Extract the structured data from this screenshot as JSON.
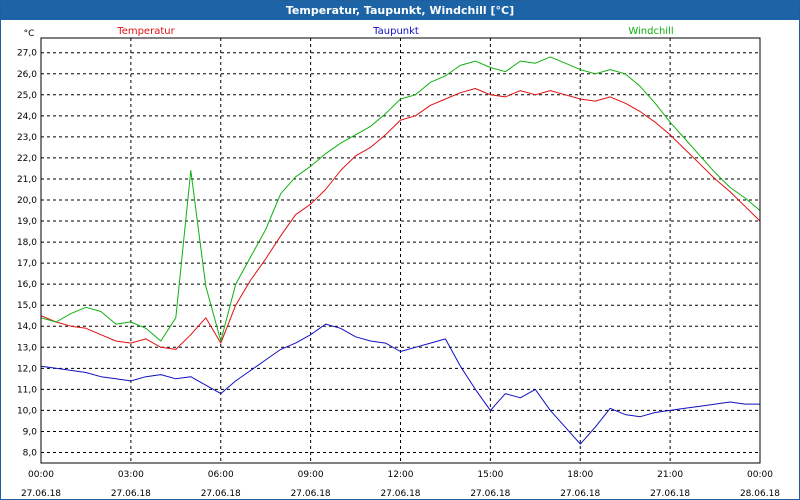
{
  "window": {
    "title": "Temperatur, Taupunkt, Windchill [°C]"
  },
  "chart_data": {
    "type": "line",
    "title": "Temperatur, Taupunkt, Windchill [°C]",
    "ylabel": "°C",
    "ylim": [
      7.5,
      27.7
    ],
    "yticks": [
      "8,0",
      "9,0",
      "10,0",
      "11,0",
      "12,0",
      "13,0",
      "14,0",
      "15,0",
      "16,0",
      "17,0",
      "18,0",
      "19,0",
      "20,0",
      "21,0",
      "22,0",
      "23,0",
      "24,0",
      "25,0",
      "26,0",
      "27,0"
    ],
    "xlim": [
      0,
      24
    ],
    "xticks": [
      {
        "time": "00:00",
        "date": "27.06.18"
      },
      {
        "time": "03:00",
        "date": "27.06.18"
      },
      {
        "time": "06:00",
        "date": "27.06.18"
      },
      {
        "time": "09:00",
        "date": "27.06.18"
      },
      {
        "time": "12:00",
        "date": "27.06.18"
      },
      {
        "time": "15:00",
        "date": "27.06.18"
      },
      {
        "time": "18:00",
        "date": "27.06.18"
      },
      {
        "time": "21:00",
        "date": "27.06.18"
      },
      {
        "time": "00:00",
        "date": "28.06.18"
      }
    ],
    "grid": true,
    "legend_placement": "top",
    "series": [
      {
        "name": "Temperatur",
        "color": "#e01010",
        "x": [
          0,
          0.5,
          1,
          1.5,
          2,
          2.5,
          3,
          3.5,
          4,
          4.5,
          5,
          5.5,
          6,
          6.5,
          7,
          7.5,
          8,
          8.5,
          9,
          9.5,
          10,
          10.5,
          11,
          11.5,
          12,
          12.5,
          13,
          13.5,
          14,
          14.5,
          15,
          15.5,
          16,
          16.5,
          17,
          17.5,
          18,
          18.5,
          19,
          19.5,
          20,
          20.5,
          21,
          21.5,
          22,
          22.5,
          23,
          23.5,
          24
        ],
        "values": [
          14.5,
          14.2,
          14.0,
          13.9,
          13.6,
          13.3,
          13.2,
          13.4,
          13.0,
          12.9,
          13.6,
          14.4,
          13.2,
          15.0,
          16.2,
          17.2,
          18.3,
          19.3,
          19.8,
          20.5,
          21.4,
          22.1,
          22.5,
          23.1,
          23.8,
          24.0,
          24.5,
          24.8,
          25.1,
          25.3,
          25.0,
          24.9,
          25.2,
          25.0,
          25.2,
          25.0,
          24.8,
          24.7,
          24.9,
          24.6,
          24.2,
          23.7,
          23.1,
          22.4,
          21.7,
          21.0,
          20.4,
          19.7,
          19.0
        ]
      },
      {
        "name": "Taupunkt",
        "color": "#1010c0",
        "x": [
          0,
          0.5,
          1,
          1.5,
          2,
          2.5,
          3,
          3.5,
          4,
          4.5,
          5,
          5.5,
          6,
          6.5,
          7,
          7.5,
          8,
          8.5,
          9,
          9.5,
          10,
          10.5,
          11,
          11.5,
          12,
          12.5,
          13,
          13.5,
          14,
          14.5,
          15,
          15.5,
          16,
          16.5,
          17,
          17.5,
          18,
          18.5,
          19,
          19.5,
          20,
          20.5,
          21,
          21.5,
          22,
          22.5,
          23,
          23.5,
          24
        ],
        "values": [
          12.1,
          12.0,
          11.9,
          11.8,
          11.6,
          11.5,
          11.4,
          11.6,
          11.7,
          11.5,
          11.6,
          11.2,
          10.8,
          11.4,
          11.9,
          12.4,
          12.9,
          13.2,
          13.6,
          14.1,
          13.9,
          13.5,
          13.3,
          13.2,
          12.8,
          13.0,
          13.2,
          13.4,
          12.1,
          11.0,
          10.0,
          10.8,
          10.6,
          11.0,
          10.0,
          9.2,
          8.4,
          9.2,
          10.1,
          9.8,
          9.7,
          9.9,
          10.0,
          10.1,
          10.2,
          10.3,
          10.4,
          10.3,
          10.3
        ]
      },
      {
        "name": "Windchill",
        "color": "#10b010",
        "x": [
          0,
          0.5,
          1,
          1.5,
          2,
          2.5,
          3,
          3.5,
          4,
          4.5,
          5,
          5.5,
          6,
          6.5,
          7,
          7.5,
          8,
          8.5,
          9,
          9.5,
          10,
          10.5,
          11,
          11.5,
          12,
          12.5,
          13,
          13.5,
          14,
          14.5,
          15,
          15.5,
          16,
          16.5,
          17,
          17.5,
          18,
          18.5,
          19,
          19.5,
          20,
          20.5,
          21,
          21.5,
          22,
          22.5,
          23,
          23.5,
          24
        ],
        "values": [
          14.4,
          14.2,
          14.6,
          14.9,
          14.7,
          14.1,
          14.2,
          13.9,
          13.3,
          14.4,
          21.4,
          15.9,
          13.3,
          16.0,
          17.3,
          18.6,
          20.3,
          21.1,
          21.6,
          22.2,
          22.7,
          23.1,
          23.5,
          24.1,
          24.8,
          25.0,
          25.6,
          25.9,
          26.4,
          26.6,
          26.3,
          26.1,
          26.6,
          26.5,
          26.8,
          26.5,
          26.2,
          26.0,
          26.2,
          26.0,
          25.4,
          24.6,
          23.7,
          22.9,
          22.1,
          21.3,
          20.6,
          20.1,
          19.5
        ]
      }
    ]
  }
}
